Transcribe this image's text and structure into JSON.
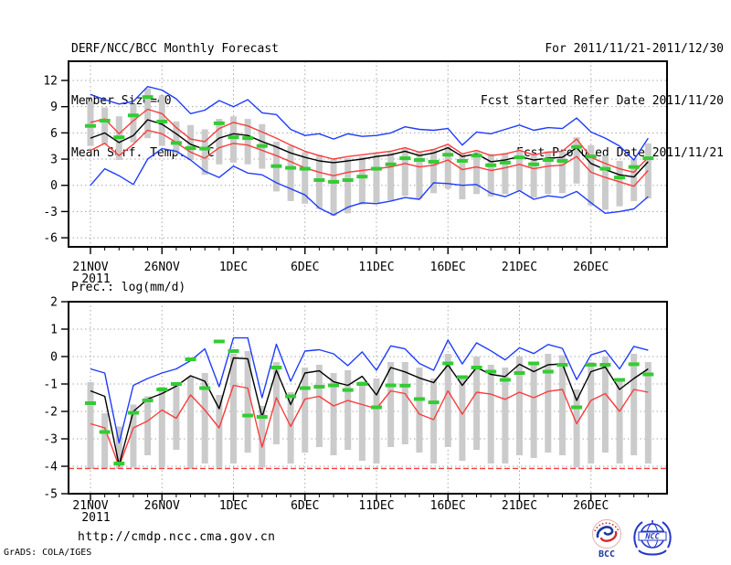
{
  "header": {
    "title": "DERF/NCC/BCC Monthly Forecast",
    "member_size": "Member Size=40",
    "temp_label": "Mean Surf. Temp.: °C",
    "for_range": "For 2011/11/21-2011/12/30",
    "refer_date": "Fcst Started Refer Date 2011/11/20",
    "produced_date": "Fcst Produced Date 2011/11/21"
  },
  "footer": {
    "url": "http://cmdp.ncc.cma.gov.cn",
    "grads_credit": "GrADS: COLA/IGES",
    "bcc_label": "BCC",
    "ncc_label": "NCC"
  },
  "colors": {
    "blue": "#1e3cff",
    "red": "#fa3c3c",
    "green": "#33cc33",
    "black": "#000000",
    "gray_bar": "#cbcbcb",
    "grid": "#a8a8a8",
    "text": "#000000",
    "bcc_blue": "#1a3a9e",
    "bcc_red": "#d42a2a",
    "ncc_blue": "#2438c8"
  },
  "chart_data": [
    {
      "type": "line",
      "title": "Mean Surf. Temp.: °C",
      "ylabel": "°C",
      "grid": true,
      "legend": "none",
      "ylim": [
        -7.1,
        14.2
      ],
      "yticks": [
        12,
        9,
        6,
        3,
        0,
        -3,
        -6
      ],
      "x": {
        "year_label": "2011",
        "tick_days": [
          0,
          5,
          10,
          15,
          20,
          25,
          30,
          35
        ],
        "tick_labels": [
          "21NOV",
          "26NOV",
          "1DEC",
          "6DEC",
          "11DEC",
          "16DEC",
          "21DEC",
          "26DEC"
        ],
        "dates": [
          "21NOV",
          "22NOV",
          "23NOV",
          "24NOV",
          "25NOV",
          "26NOV",
          "27NOV",
          "28NOV",
          "29NOV",
          "30NOV",
          "1DEC",
          "2DEC",
          "3DEC",
          "4DEC",
          "5DEC",
          "6DEC",
          "7DEC",
          "8DEC",
          "9DEC",
          "10DEC",
          "11DEC",
          "12DEC",
          "13DEC",
          "14DEC",
          "15DEC",
          "16DEC",
          "17DEC",
          "18DEC",
          "19DEC",
          "20DEC",
          "21DEC",
          "22DEC",
          "23DEC",
          "24DEC",
          "25DEC",
          "26DEC",
          "27DEC",
          "28DEC",
          "29DEC",
          "30DEC"
        ]
      },
      "series": [
        {
          "name": "member-spread",
          "type": "bar-range",
          "color_key": "gray_bar",
          "ranges": [
            [
              4.5,
              9.6
            ],
            [
              4.7,
              8.9
            ],
            [
              2.9,
              7.9
            ],
            [
              4.9,
              9.3
            ],
            [
              5.4,
              11.1
            ],
            [
              4.5,
              10.3
            ],
            [
              3.6,
              7.3
            ],
            [
              2.9,
              6.9
            ],
            [
              1.2,
              6.4
            ],
            [
              2.4,
              7.6
            ],
            [
              2.6,
              7.9
            ],
            [
              2.4,
              7.6
            ],
            [
              1.9,
              7.0
            ],
            [
              -0.7,
              5.0
            ],
            [
              -1.8,
              4.5
            ],
            [
              -2.1,
              3.8
            ],
            [
              -2.7,
              3.5
            ],
            [
              -3.5,
              3.1
            ],
            [
              -3.2,
              3.1
            ],
            [
              -2.2,
              3.3
            ],
            [
              -2.0,
              3.6
            ],
            [
              -1.7,
              3.8
            ],
            [
              -1.2,
              4.2
            ],
            [
              -1.5,
              3.9
            ],
            [
              -0.9,
              4.1
            ],
            [
              -0.4,
              4.5
            ],
            [
              -1.6,
              3.7
            ],
            [
              -1.0,
              4.0
            ],
            [
              -1.3,
              3.6
            ],
            [
              -1.0,
              3.7
            ],
            [
              -0.6,
              4.1
            ],
            [
              -1.4,
              3.6
            ],
            [
              -1.0,
              3.9
            ],
            [
              -0.9,
              3.9
            ],
            [
              0.2,
              5.5
            ],
            [
              -2.3,
              4.6
            ],
            [
              -2.8,
              3.4
            ],
            [
              -2.4,
              2.8
            ],
            [
              -1.8,
              3.0
            ],
            [
              -1.5,
              4.8
            ]
          ]
        },
        {
          "name": "ensemble-max",
          "type": "line",
          "color_key": "blue",
          "values": [
            10.4,
            9.8,
            9.3,
            9.6,
            11.3,
            10.9,
            9.9,
            8.2,
            8.6,
            9.7,
            9.0,
            9.8,
            8.3,
            8.1,
            6.4,
            5.7,
            5.9,
            5.3,
            5.9,
            5.6,
            5.7,
            6.0,
            6.7,
            6.4,
            6.3,
            6.5,
            4.6,
            6.1,
            5.9,
            6.4,
            6.9,
            6.3,
            6.6,
            6.5,
            7.7,
            6.1,
            5.4,
            4.5,
            2.9,
            5.4
          ]
        },
        {
          "name": "ensemble-min",
          "type": "line",
          "color_key": "blue",
          "values": [
            0.0,
            1.9,
            1.1,
            0.1,
            3.0,
            4.2,
            3.9,
            2.9,
            1.6,
            0.9,
            2.2,
            1.4,
            1.2,
            0.3,
            -0.4,
            -1.1,
            -2.6,
            -3.4,
            -2.5,
            -2.0,
            -2.1,
            -1.8,
            -1.4,
            -1.6,
            0.3,
            0.2,
            0.0,
            0.1,
            -0.9,
            -1.3,
            -0.6,
            -1.6,
            -1.2,
            -1.4,
            -0.7,
            -2.0,
            -3.2,
            -3.0,
            -2.7,
            -1.3
          ]
        },
        {
          "name": "mean-plus-sd",
          "type": "line",
          "color_key": "red",
          "values": [
            7.2,
            7.6,
            5.9,
            7.4,
            8.7,
            8.2,
            6.6,
            5.3,
            5.0,
            6.5,
            7.2,
            6.8,
            6.1,
            5.4,
            4.6,
            3.9,
            3.4,
            3.0,
            3.3,
            3.5,
            3.7,
            3.9,
            4.3,
            3.8,
            4.1,
            4.7,
            3.6,
            4.0,
            3.4,
            3.6,
            4.0,
            3.5,
            3.8,
            3.9,
            5.3,
            3.2,
            2.5,
            1.9,
            1.5,
            3.2
          ]
        },
        {
          "name": "mean-minus-sd",
          "type": "line",
          "color_key": "red",
          "values": [
            4.0,
            4.8,
            3.4,
            4.7,
            6.3,
            5.9,
            4.9,
            3.8,
            3.1,
            4.3,
            4.8,
            4.6,
            4.0,
            3.4,
            2.7,
            2.0,
            1.5,
            1.1,
            1.5,
            1.7,
            1.9,
            2.1,
            2.5,
            2.1,
            2.3,
            2.9,
            1.8,
            2.1,
            1.7,
            2.0,
            2.4,
            1.9,
            2.2,
            2.3,
            3.3,
            1.5,
            0.9,
            0.4,
            -0.1,
            1.7
          ]
        },
        {
          "name": "ensemble-mean",
          "type": "line",
          "color_key": "black",
          "values": [
            5.4,
            6.0,
            4.9,
            5.7,
            7.5,
            7.0,
            5.9,
            4.7,
            4.1,
            5.4,
            5.9,
            5.7,
            5.0,
            4.4,
            3.7,
            3.2,
            2.8,
            2.6,
            2.8,
            3.0,
            3.3,
            3.5,
            3.9,
            3.4,
            3.7,
            4.3,
            3.3,
            3.6,
            2.7,
            2.9,
            3.3,
            2.9,
            3.1,
            3.2,
            4.3,
            2.5,
            1.8,
            1.2,
            0.95,
            2.7
          ]
        },
        {
          "name": "observation",
          "type": "dash-marker",
          "color_key": "green",
          "values": [
            6.8,
            7.4,
            5.5,
            8.0,
            10.1,
            7.3,
            4.85,
            4.25,
            4.2,
            7.1,
            5.5,
            5.4,
            4.5,
            2.2,
            2.0,
            1.9,
            0.6,
            0.4,
            0.6,
            1.0,
            1.9,
            2.4,
            3.1,
            2.9,
            2.7,
            3.5,
            2.8,
            3.4,
            2.3,
            2.6,
            3.2,
            2.4,
            2.9,
            2.8,
            4.4,
            3.3,
            1.9,
            0.9,
            2.1,
            3.1
          ]
        }
      ]
    },
    {
      "type": "line",
      "title": "Prec.: log(mm/d)",
      "ylabel": "log(mm/d)",
      "grid": true,
      "legend": "none",
      "ylim": [
        -5,
        2
      ],
      "yticks": [
        2,
        1,
        0,
        -1,
        -2,
        -3,
        -4,
        -5
      ],
      "x": {
        "year_label": "2011",
        "tick_days": [
          0,
          5,
          10,
          15,
          20,
          25,
          30,
          35
        ],
        "tick_labels": [
          "21NOV",
          "26NOV",
          "1DEC",
          "6DEC",
          "11DEC",
          "16DEC",
          "21DEC",
          "26DEC"
        ],
        "dates": [
          "21NOV",
          "22NOV",
          "23NOV",
          "24NOV",
          "25NOV",
          "26NOV",
          "27NOV",
          "28NOV",
          "29NOV",
          "30NOV",
          "1DEC",
          "2DEC",
          "3DEC",
          "4DEC",
          "5DEC",
          "6DEC",
          "7DEC",
          "8DEC",
          "9DEC",
          "10DEC",
          "11DEC",
          "12DEC",
          "13DEC",
          "14DEC",
          "15DEC",
          "16DEC",
          "17DEC",
          "18DEC",
          "19DEC",
          "20DEC",
          "21DEC",
          "22DEC",
          "23DEC",
          "24DEC",
          "25DEC",
          "26DEC",
          "27DEC",
          "28DEC",
          "29DEC",
          "30DEC"
        ]
      },
      "series": [
        {
          "name": "member-spread",
          "type": "bar-range",
          "color_key": "gray_bar",
          "ranges": [
            [
              -4.1,
              -0.93
            ],
            [
              -4.1,
              -2.07
            ],
            [
              -4.1,
              -2.55
            ],
            [
              -4.05,
              -1.75
            ],
            [
              -3.6,
              -1.45
            ],
            [
              -4.05,
              -1.1
            ],
            [
              -3.4,
              -0.97
            ],
            [
              -4.1,
              -0.73
            ],
            [
              -3.9,
              -0.6
            ],
            [
              -4.05,
              -1.4
            ],
            [
              -3.9,
              0.1
            ],
            [
              -3.5,
              0.2
            ],
            [
              -4.05,
              -1.8
            ],
            [
              -3.2,
              -0.2
            ],
            [
              -3.9,
              -1.3
            ],
            [
              -3.5,
              -0.4
            ],
            [
              -3.3,
              -0.3
            ],
            [
              -3.6,
              -0.6
            ],
            [
              -3.4,
              -0.5
            ],
            [
              -3.8,
              -0.9
            ],
            [
              -3.9,
              -0.8
            ],
            [
              -3.3,
              -0.2
            ],
            [
              -3.2,
              -0.2
            ],
            [
              -3.5,
              -0.4
            ],
            [
              -3.9,
              -0.8
            ],
            [
              -3.3,
              0.1
            ],
            [
              -3.8,
              -0.7
            ],
            [
              -3.4,
              0.0
            ],
            [
              -3.9,
              -0.3
            ],
            [
              -3.9,
              -0.4
            ],
            [
              -3.6,
              0.0
            ],
            [
              -3.7,
              -0.2
            ],
            [
              -3.5,
              0.1
            ],
            [
              -3.6,
              0.05
            ],
            [
              -4.05,
              -1.2
            ],
            [
              -3.9,
              -0.2
            ],
            [
              -3.5,
              0.0
            ],
            [
              -3.9,
              -0.9
            ],
            [
              -3.6,
              0.1
            ],
            [
              -3.9,
              -0.2
            ]
          ]
        },
        {
          "name": "ensemble-max",
          "type": "line",
          "color_key": "blue",
          "values": [
            -0.45,
            -0.6,
            -3.15,
            -1.05,
            -0.8,
            -0.6,
            -0.45,
            -0.15,
            0.28,
            -1.1,
            0.68,
            0.68,
            -1.5,
            0.45,
            -0.9,
            0.2,
            0.25,
            0.1,
            -0.33,
            0.17,
            -0.5,
            0.39,
            0.28,
            -0.25,
            -0.5,
            0.6,
            -0.27,
            0.5,
            0.21,
            -0.12,
            0.32,
            0.11,
            0.44,
            0.3,
            -0.84,
            0.06,
            0.22,
            -0.45,
            0.37,
            0.23
          ]
        },
        {
          "name": "mean-minus-sd",
          "type": "line",
          "color_key": "red",
          "values": [
            -2.45,
            -2.6,
            -4.0,
            -2.6,
            -2.35,
            -1.95,
            -2.25,
            -1.4,
            -1.95,
            -2.6,
            -1.05,
            -1.15,
            -3.3,
            -1.5,
            -2.55,
            -1.55,
            -1.45,
            -1.8,
            -1.6,
            -1.75,
            -1.9,
            -1.25,
            -1.35,
            -2.1,
            -2.3,
            -1.25,
            -2.1,
            -1.3,
            -1.37,
            -1.56,
            -1.3,
            -1.5,
            -1.27,
            -1.2,
            -2.45,
            -1.6,
            -1.35,
            -2.0,
            -1.2,
            -1.3
          ]
        },
        {
          "name": "zero-precip-floor",
          "type": "dashed-hline",
          "color_key": "red",
          "value": -4.08
        },
        {
          "name": "ensemble-mean",
          "type": "line",
          "color_key": "black",
          "values": [
            -1.25,
            -1.45,
            -3.95,
            -2.0,
            -1.55,
            -1.35,
            -1.08,
            -0.7,
            -0.9,
            -1.9,
            -0.05,
            -0.08,
            -2.2,
            -0.5,
            -1.75,
            -0.6,
            -0.52,
            -0.92,
            -1.05,
            -0.72,
            -1.4,
            -0.4,
            -0.56,
            -0.78,
            -0.95,
            -0.3,
            -1.05,
            -0.4,
            -0.65,
            -0.73,
            -0.28,
            -0.55,
            -0.3,
            -0.27,
            -1.6,
            -0.55,
            -0.38,
            -1.2,
            -0.8,
            -0.45
          ]
        },
        {
          "name": "observation",
          "type": "dash-marker",
          "color_key": "green",
          "values": [
            -1.7,
            -2.75,
            -3.9,
            -2.05,
            -1.6,
            -1.2,
            -1.0,
            -0.1,
            -1.15,
            0.55,
            0.2,
            -2.15,
            -2.2,
            -0.4,
            -1.45,
            -1.15,
            -1.1,
            -1.05,
            -1.22,
            -1.0,
            -1.85,
            -1.05,
            -1.06,
            -1.55,
            -1.67,
            -0.25,
            -0.75,
            -0.4,
            -0.55,
            -0.85,
            -0.6,
            -0.25,
            -0.55,
            -0.3,
            -1.85,
            -0.3,
            -0.3,
            -0.85,
            -0.28,
            -0.65
          ]
        }
      ]
    }
  ]
}
